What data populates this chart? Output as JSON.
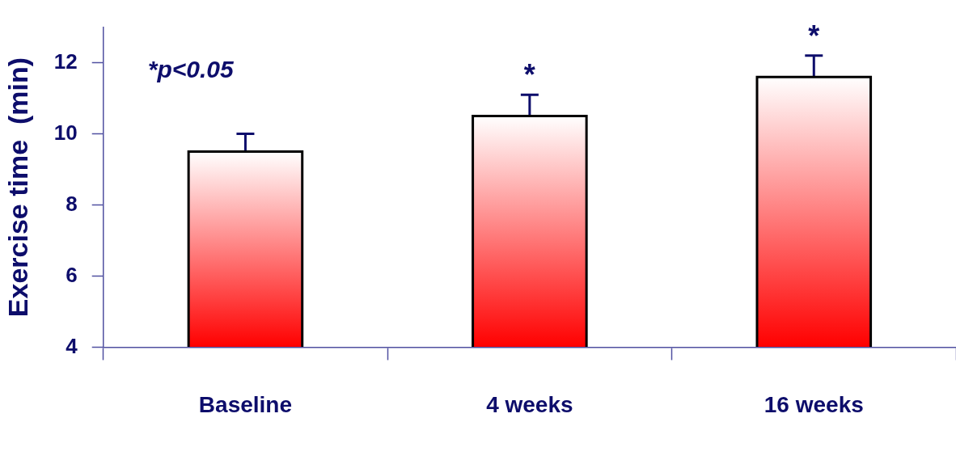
{
  "chart_data": {
    "type": "bar",
    "ylabel": "Exercise time  (min)",
    "categories": [
      "Baseline",
      "4 weeks",
      "16 weeks"
    ],
    "values": [
      9.5,
      10.5,
      11.6
    ],
    "errors": [
      0.5,
      0.6,
      0.6
    ],
    "color": "#ff0000",
    "ylim": [
      4,
      13
    ],
    "yticks": [
      4,
      6,
      8,
      10,
      12
    ],
    "grid": false,
    "legend": false,
    "annotations": [
      "*p<0.05",
      {
        "text": "*",
        "x": "4 weeks",
        "y": 11.1
      },
      {
        "text": "*",
        "x": "16 weeks",
        "y": 12.2
      }
    ]
  }
}
